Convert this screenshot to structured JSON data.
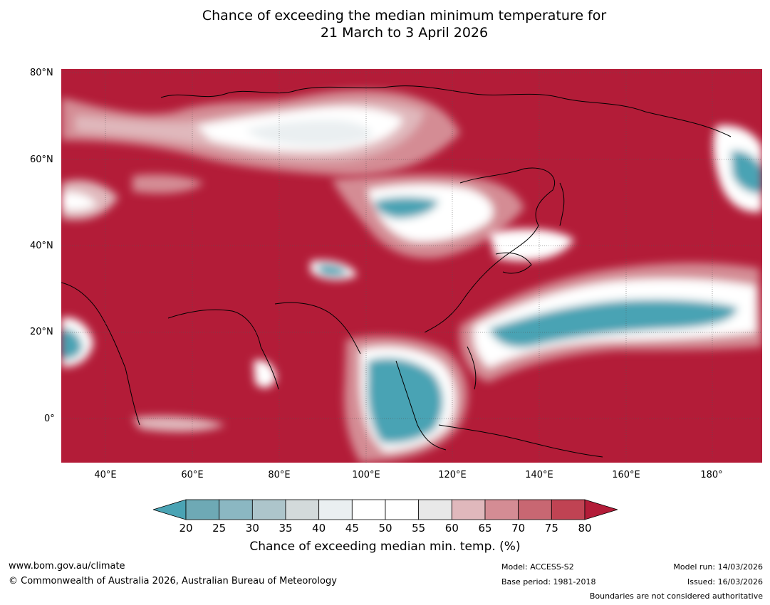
{
  "title_line1": "Chance of exceeding the median minimum temperature for",
  "title_line2": "21 March to 3 April 2026",
  "lat_labels": [
    "80°N",
    "60°N",
    "40°N",
    "20°N",
    "0°"
  ],
  "lon_labels": [
    "40°E",
    "60°E",
    "80°E",
    "100°E",
    "120°E",
    "140°E",
    "160°E",
    "180°"
  ],
  "colorbar": {
    "ticks": [
      "20",
      "25",
      "30",
      "35",
      "40",
      "45",
      "50",
      "55",
      "60",
      "65",
      "70",
      "75",
      "80"
    ],
    "colors": [
      "#4aa3b4",
      "#6ea9b5",
      "#8bb7c2",
      "#adc5cb",
      "#d3dadb",
      "#eaeff1",
      "#ffffff",
      "#ffffff",
      "#e8e8e8",
      "#e0b8bc",
      "#d48c94",
      "#c86772",
      "#c04353",
      "#b31c38"
    ],
    "label": "Chance of exceeding median min. temp. (%)"
  },
  "footer": {
    "url": "www.bom.gov.au/climate",
    "copyright": "© Commonwealth of Australia 2026, Australian Bureau of Meteorology",
    "model": "Model: ACCESS-S2",
    "base_period": "Base period: 1981-2018",
    "model_run": "Model run: 14/03/2026",
    "issued": "Issued: 16/03/2026",
    "boundaries": "Boundaries are not considered authoritative"
  }
}
